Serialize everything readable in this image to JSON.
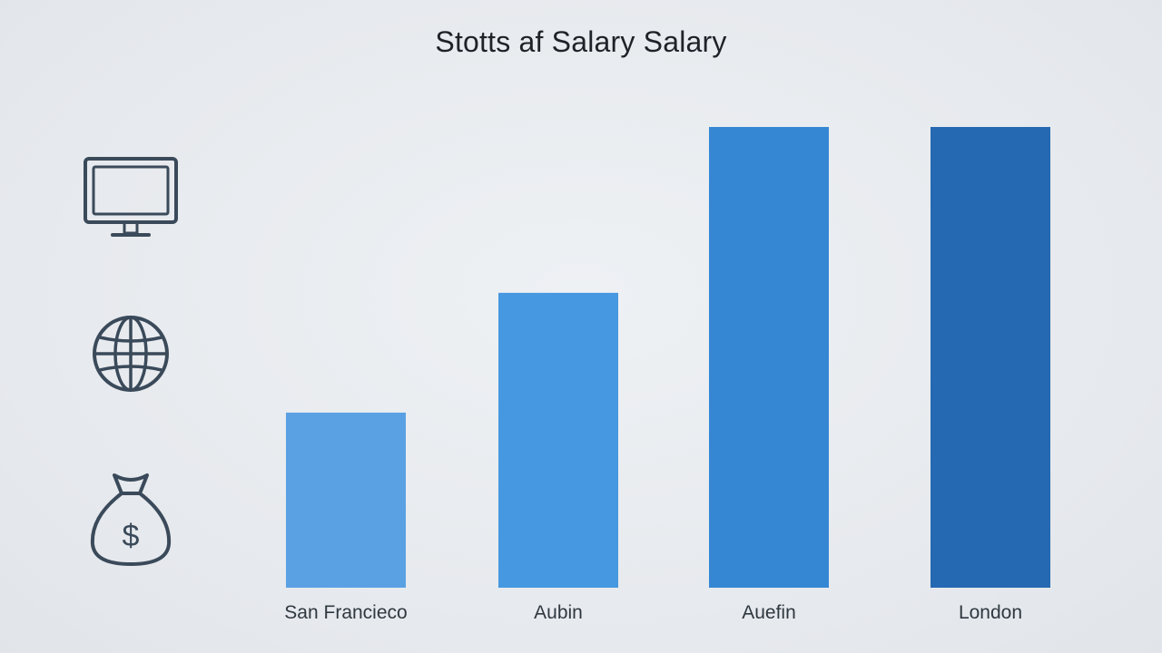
{
  "icons": [
    "monitor-icon",
    "globe-icon",
    "money-bag-icon"
  ],
  "colors": {
    "background": "#e9ecf0",
    "icon_stroke": "#3a4a5a",
    "title": "#1e2329"
  },
  "chart_data": {
    "type": "bar",
    "title": "Stotts af Salary Salary",
    "xlabel": "",
    "ylabel": "",
    "categories": [
      "San Francieco",
      "Aubin",
      "Auefin",
      "London"
    ],
    "values": [
      38,
      64,
      100,
      100
    ],
    "bar_colors": [
      "#5aa1e3",
      "#4698e0",
      "#3587d4",
      "#2569b2"
    ],
    "ylim": [
      0,
      100
    ],
    "grid": false,
    "legend": "none"
  }
}
